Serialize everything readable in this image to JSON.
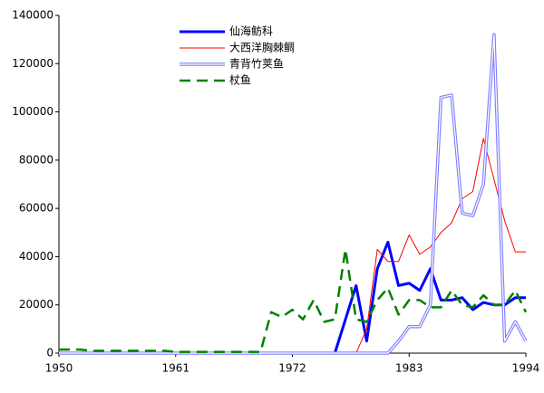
{
  "chart_data": {
    "type": "line",
    "x": [
      1950,
      1951,
      1952,
      1953,
      1954,
      1955,
      1956,
      1957,
      1958,
      1959,
      1960,
      1961,
      1962,
      1963,
      1964,
      1965,
      1966,
      1967,
      1968,
      1969,
      1970,
      1971,
      1972,
      1973,
      1974,
      1975,
      1976,
      1977,
      1978,
      1979,
      1980,
      1981,
      1982,
      1983,
      1984,
      1985,
      1986,
      1987,
      1988,
      1989,
      1990,
      1991,
      1992,
      1993,
      1994
    ],
    "xlim": [
      1950,
      1994
    ],
    "xticks": [
      1950,
      1961,
      1972,
      1983,
      1994
    ],
    "ylim": [
      0,
      140000
    ],
    "yticks": [
      0,
      20000,
      40000,
      60000,
      80000,
      100000,
      120000,
      140000
    ],
    "grid": false,
    "legend": "top",
    "series": [
      {
        "name": "仙海鲂科",
        "color": "#0000ff",
        "line_style": "thick",
        "values": [
          0,
          0,
          0,
          0,
          0,
          0,
          0,
          0,
          0,
          0,
          0,
          0,
          0,
          0,
          0,
          0,
          0,
          0,
          0,
          0,
          0,
          0,
          0,
          0,
          0,
          0,
          0,
          14000,
          28000,
          5000,
          35000,
          46000,
          28000,
          29000,
          26000,
          35000,
          22000,
          22000,
          23000,
          18000,
          21000,
          20000,
          20000,
          23000,
          23000
        ]
      },
      {
        "name": "大西洋胸棘鲷",
        "color": "#ff0000",
        "line_style": "thin",
        "values": [
          0,
          0,
          0,
          0,
          0,
          0,
          0,
          0,
          0,
          0,
          0,
          0,
          0,
          0,
          0,
          0,
          0,
          0,
          0,
          0,
          0,
          0,
          0,
          0,
          0,
          0,
          0,
          0,
          0,
          10000,
          43000,
          38000,
          38000,
          49000,
          41000,
          44000,
          50000,
          54000,
          64000,
          67000,
          89000,
          72000,
          55000,
          42000,
          42000
        ]
      },
      {
        "name": "青背竹荚鱼",
        "color": "#8080ff",
        "line_style": "double",
        "values": [
          0,
          0,
          0,
          0,
          0,
          0,
          0,
          0,
          0,
          0,
          0,
          0,
          0,
          0,
          0,
          0,
          0,
          0,
          0,
          0,
          0,
          0,
          0,
          0,
          0,
          0,
          0,
          0,
          0,
          0,
          0,
          0,
          5000,
          11000,
          11000,
          20000,
          106000,
          107000,
          58000,
          57000,
          70000,
          132000,
          5000,
          13000,
          5000
        ]
      },
      {
        "name": "杖鱼",
        "color": "#008000",
        "line_style": "dashed",
        "values": [
          1500,
          1500,
          1500,
          1000,
          1000,
          1000,
          1000,
          1000,
          1000,
          1000,
          1000,
          500,
          500,
          500,
          500,
          500,
          500,
          500,
          500,
          500,
          17000,
          15000,
          18000,
          14000,
          22000,
          13000,
          14000,
          43000,
          14000,
          13000,
          22000,
          27000,
          16000,
          22000,
          22000,
          19000,
          19000,
          26000,
          20000,
          19000,
          24000,
          20000,
          20000,
          26000,
          17000
        ]
      }
    ]
  }
}
